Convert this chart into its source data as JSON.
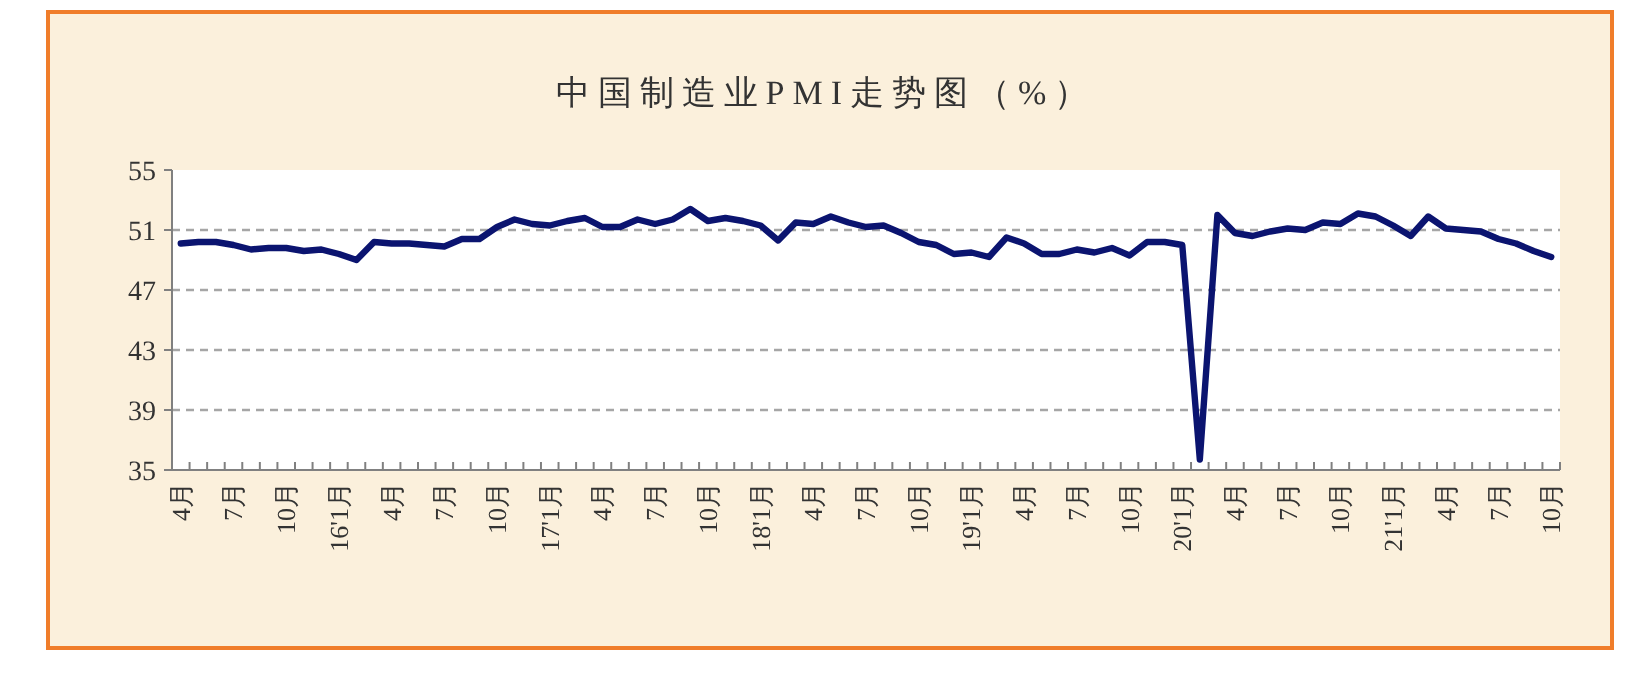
{
  "chart_data": {
    "type": "line",
    "title": "中国制造业PMI走势图（%）",
    "categories": [
      "4月",
      null,
      null,
      "7月",
      null,
      null,
      "10月",
      null,
      null,
      "16'1月",
      null,
      null,
      "4月",
      null,
      null,
      "7月",
      null,
      null,
      "10月",
      null,
      null,
      "17'1月",
      null,
      null,
      "4月",
      null,
      null,
      "7月",
      null,
      null,
      "10月",
      null,
      null,
      "18'1月",
      null,
      null,
      "4月",
      null,
      null,
      "7月",
      null,
      null,
      "10月",
      null,
      null,
      "19'1月",
      null,
      null,
      "4月",
      null,
      null,
      "7月",
      null,
      null,
      "10月",
      null,
      null,
      "20'1月",
      null,
      null,
      "4月",
      null,
      null,
      "7月",
      null,
      null,
      "10月",
      null,
      null,
      "21'1月",
      null,
      null,
      "4月",
      null,
      null,
      "7月",
      null,
      null,
      "10月"
    ],
    "values": [
      50.1,
      50.2,
      50.2,
      50.0,
      49.7,
      49.8,
      49.8,
      49.6,
      49.7,
      49.4,
      49.0,
      50.2,
      50.1,
      50.1,
      50.0,
      49.9,
      50.4,
      50.4,
      51.2,
      51.7,
      51.4,
      51.3,
      51.6,
      51.8,
      51.2,
      51.2,
      51.7,
      51.4,
      51.7,
      52.4,
      51.6,
      51.8,
      51.6,
      51.3,
      50.3,
      51.5,
      51.4,
      51.9,
      51.5,
      51.2,
      51.3,
      50.8,
      50.2,
      50.0,
      49.4,
      49.5,
      49.2,
      50.5,
      50.1,
      49.4,
      49.4,
      49.7,
      49.5,
      49.8,
      49.3,
      50.2,
      50.2,
      50.0,
      35.7,
      52.0,
      50.8,
      50.6,
      50.9,
      51.1,
      51.0,
      51.5,
      51.4,
      52.1,
      51.9,
      51.3,
      50.6,
      51.9,
      51.1,
      51.0,
      50.9,
      50.4,
      50.1,
      49.6,
      49.2
    ],
    "color": "#0b1470",
    "line_style": "solid",
    "ylim": [
      35,
      55
    ],
    "yticks": [
      35,
      39,
      43,
      47,
      51,
      55
    ],
    "grid": "y"
  }
}
